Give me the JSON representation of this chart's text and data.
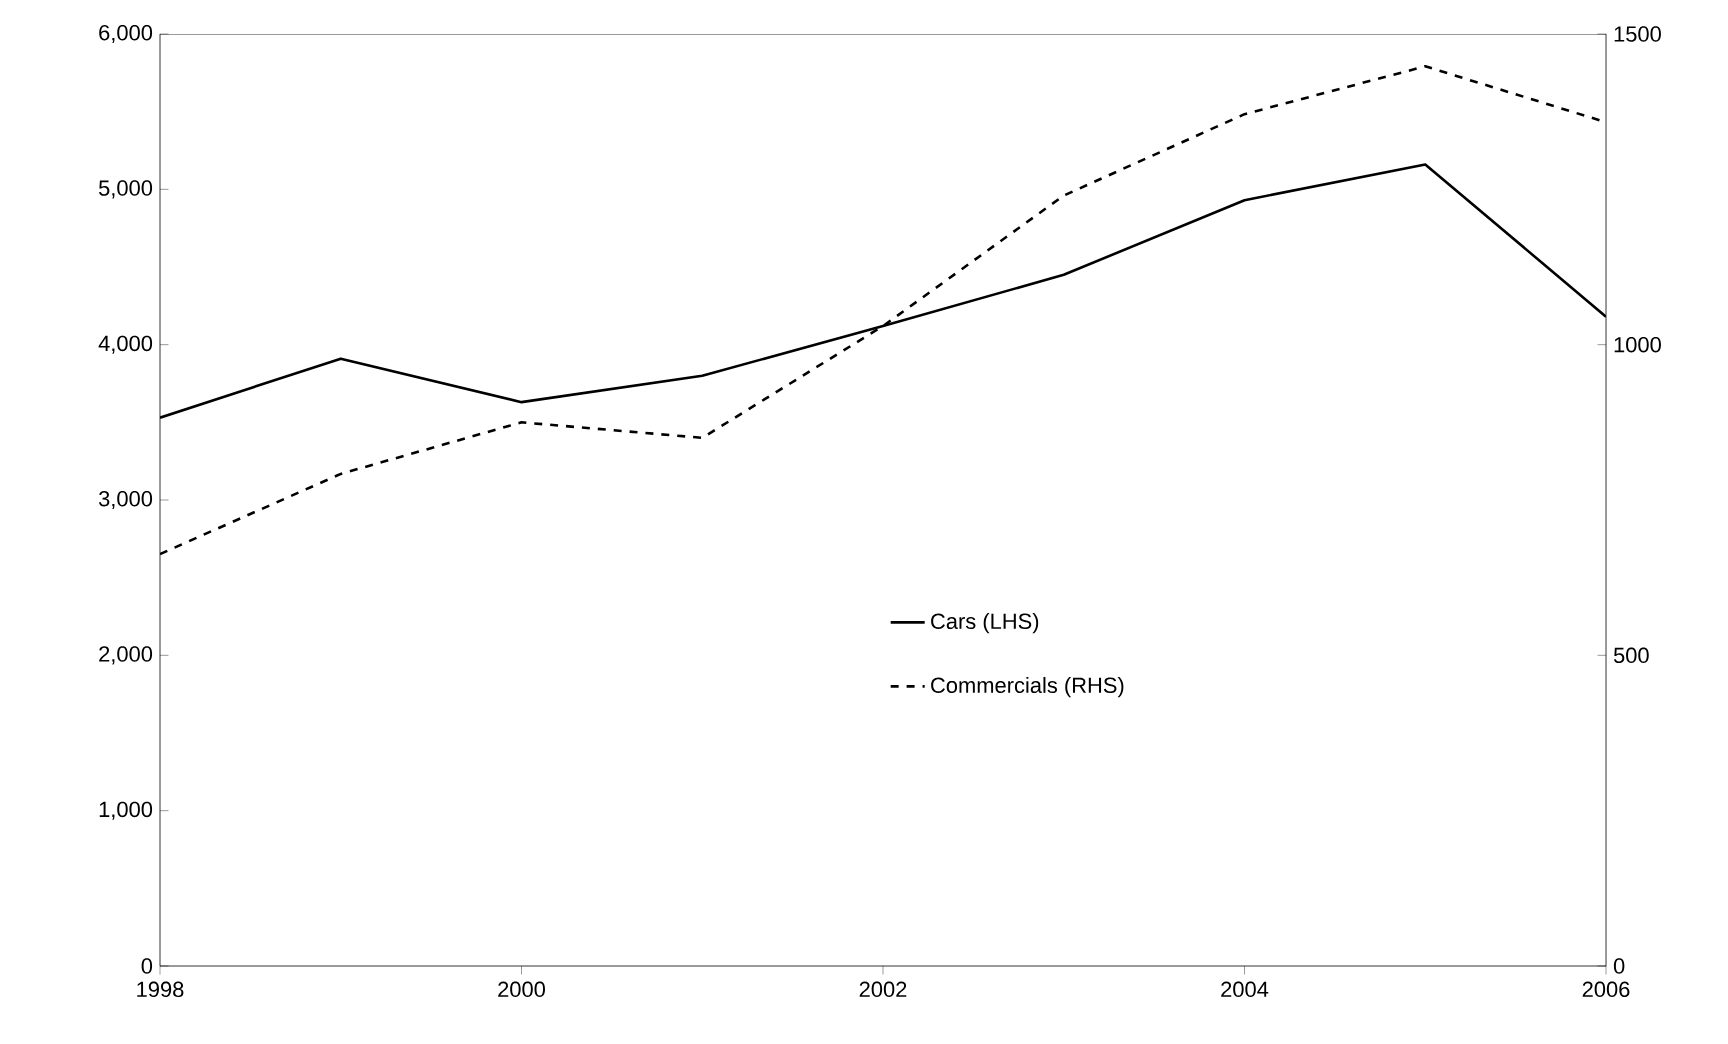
{
  "chart_data": {
    "type": "line",
    "x": [
      1998,
      1999,
      2000,
      2001,
      2002,
      2003,
      2004,
      2005,
      2006
    ],
    "series": [
      {
        "name": "Cars (LHS)",
        "color": "#000000",
        "line_style": "solid",
        "values": [
          3530,
          3910,
          3630,
          3800,
          4120,
          4450,
          4930,
          5160,
          4180
        ]
      },
      {
        "name": "Commercials (RHS)",
        "color": "#000000",
        "line_style": "dashed",
        "axis": "y2",
        "values": [
          663,
          792,
          875,
          850,
          1030,
          1240,
          1371,
          1448,
          1358
        ]
      }
    ],
    "xlim": [
      1998,
      2006
    ],
    "xticks": [
      1998,
      2000,
      2002,
      2004,
      2006
    ],
    "ylim": [
      0,
      6000
    ],
    "yticks": [
      {
        "value": 0,
        "label": "0"
      },
      {
        "value": 1000,
        "label": "1,000"
      },
      {
        "value": 2000,
        "label": "2,000"
      },
      {
        "value": 3000,
        "label": "3,000"
      },
      {
        "value": 4000,
        "label": "4,000"
      },
      {
        "value": 5000,
        "label": "5,000"
      },
      {
        "value": 6000,
        "label": "6,000"
      }
    ],
    "y2lim": [
      0,
      1500
    ],
    "y2ticks": [
      0,
      500,
      1000,
      1500
    ],
    "legend": "center",
    "grid": false,
    "marker": "none"
  }
}
